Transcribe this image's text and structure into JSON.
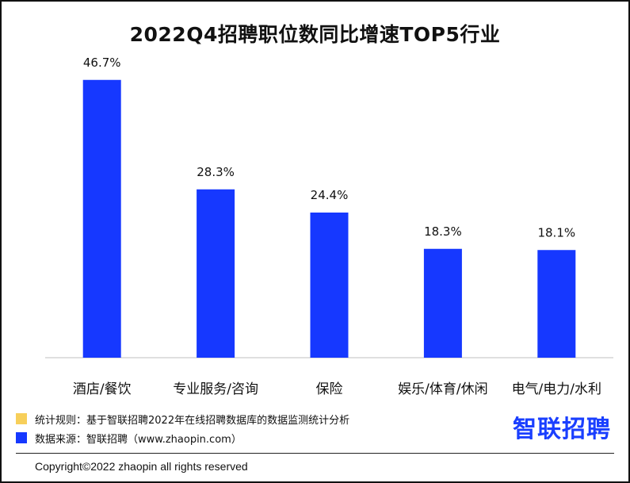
{
  "chart_data": {
    "type": "bar",
    "title": "2022Q4招聘职位数同比增速TOP5行业",
    "categories": [
      "酒店/餐饮",
      "专业服务/咨询",
      "保险",
      "娱乐/体育/休闲",
      "电气/电力/水利"
    ],
    "values": [
      46.7,
      28.3,
      24.4,
      18.3,
      18.1
    ],
    "value_labels": [
      "46.7%",
      "28.3%",
      "24.4%",
      "18.3%",
      "18.1%"
    ],
    "unit": "%",
    "ylim": [
      0,
      50
    ],
    "grid": false,
    "bar_color": "#1638ff",
    "axis_color": "#bfbfbf"
  },
  "notes": {
    "stat_rule": "统计规则：基于智联招聘2022年在线招聘数据库的数据监测统计分析",
    "stat_rule_color": "#f7cf5a",
    "data_source": "数据来源：智联招聘（www.zhaopin.com）",
    "data_source_color": "#1638ff"
  },
  "brand": {
    "logo_text": "智联招聘",
    "color": "#1a3fff"
  },
  "footer": {
    "copyright": "Copyright©2022 zhaopin all rights reserved"
  }
}
